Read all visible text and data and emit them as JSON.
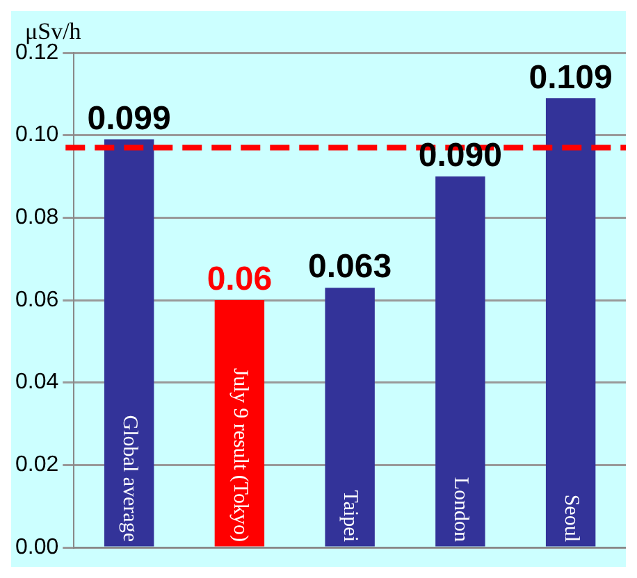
{
  "chart_data": {
    "type": "bar",
    "ylabel": "μSv/h",
    "categories": [
      "Global average",
      "July 9 result (Tokyo)",
      "Taipei",
      "London",
      "Seoul"
    ],
    "values": [
      0.099,
      0.06,
      0.063,
      0.09,
      0.109
    ],
    "colors": [
      "#333399",
      "#ff0000",
      "#333399",
      "#333399",
      "#333399"
    ],
    "ylim": [
      0,
      0.12
    ],
    "yticks": [
      {
        "value": 0,
        "label": "0.00"
      },
      {
        "value": 0.02,
        "label": "0.02"
      },
      {
        "value": 0.04,
        "label": "0.04"
      },
      {
        "value": 0.06,
        "label": "0.06"
      },
      {
        "value": 0.08,
        "label": "0.08"
      },
      {
        "value": 0.1,
        "label": "0.10"
      },
      {
        "value": 0.12,
        "label": "0.12"
      }
    ],
    "value_labels": [
      "0.099",
      "0.06",
      "0.063",
      "0.090",
      "0.109"
    ],
    "ref_lines": [
      {
        "axis": "y",
        "value": 0.097,
        "color": "#ff0000",
        "line_style": "dashed"
      }
    ],
    "grid": "y",
    "tick_labels": "y"
  }
}
